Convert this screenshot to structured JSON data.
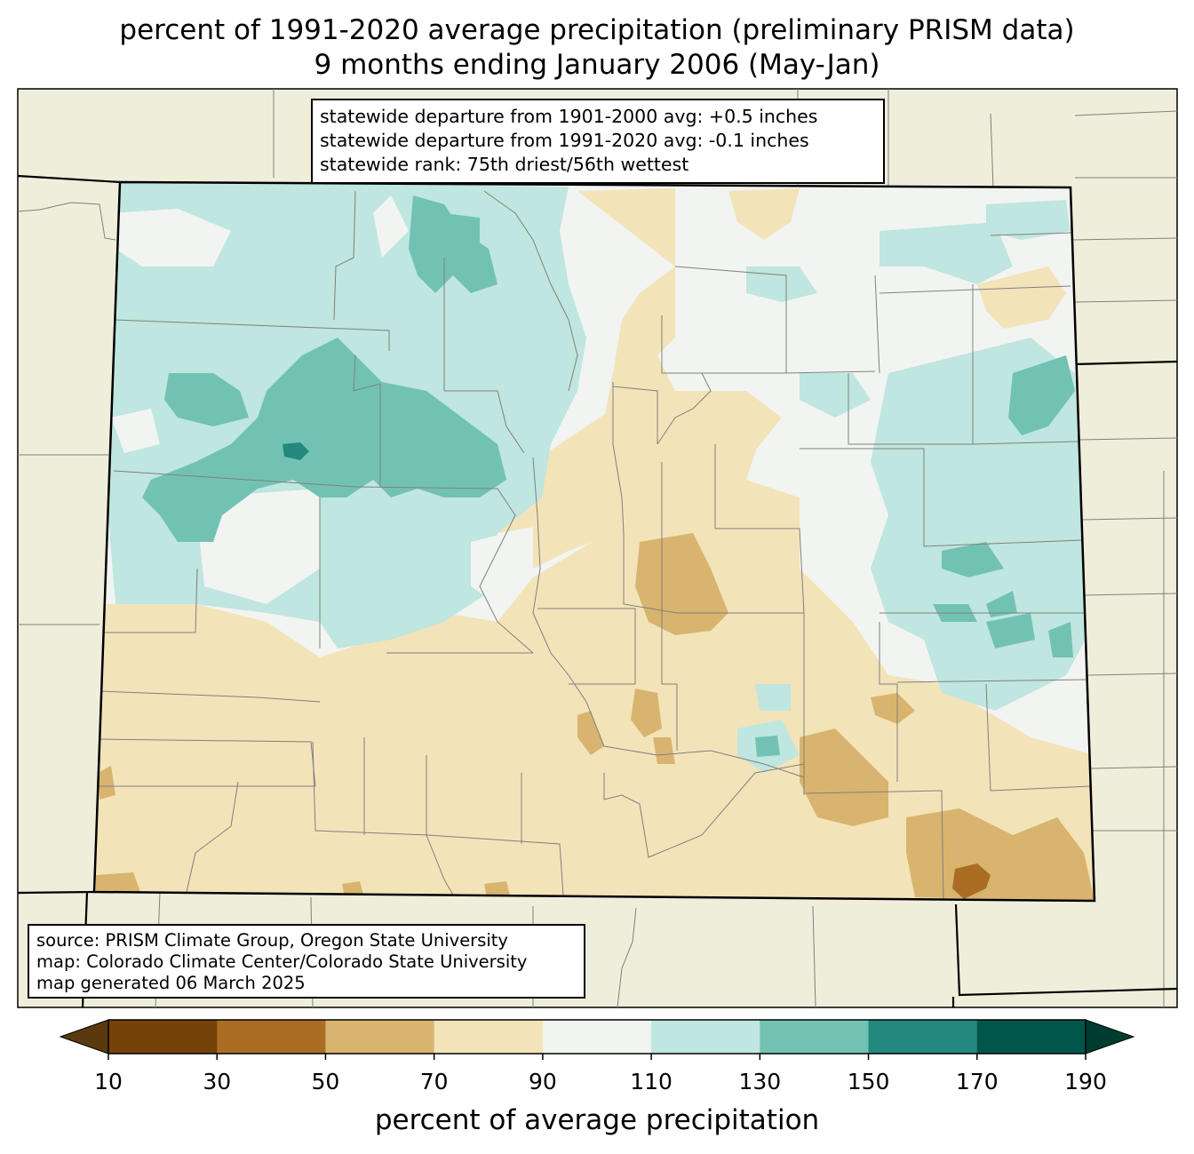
{
  "title": {
    "line1": "percent of 1991-2020 average precipitation (preliminary PRISM data)",
    "line2": "9 months ending January 2006 (May-Jan)"
  },
  "stats": {
    "line1": "statewide departure from 1901-2000 avg: +0.5 inches",
    "line2": "statewide departure from 1991-2020 avg: -0.1 inches",
    "line3": "statewide rank: 75th driest/56th wettest"
  },
  "source": {
    "line1": "source: PRISM Climate Group, Oregon State University",
    "line2": "map: Colorado Climate Center/Colorado State University",
    "line3": "map generated 06 March 2025"
  },
  "colorbar": {
    "label": "percent of average precipitation",
    "ticks": [
      "10",
      "30",
      "50",
      "70",
      "90",
      "110",
      "130",
      "150",
      "170",
      "190"
    ],
    "under_color": "#5a3a0c",
    "over_color": "#003c30",
    "bins": [
      {
        "range": "10-30",
        "color": "#744208"
      },
      {
        "range": "30-50",
        "color": "#ab6d24"
      },
      {
        "range": "50-70",
        "color": "#d8b46e"
      },
      {
        "range": "70-90",
        "color": "#f3e3b9"
      },
      {
        "range": "90-110",
        "color": "#f2f4f2"
      },
      {
        "range": "110-130",
        "color": "#bfe6e0"
      },
      {
        "range": "130-150",
        "color": "#72c2b4"
      },
      {
        "range": "150-170",
        "color": "#23887e"
      },
      {
        "range": "170-190",
        "color": "#01564c"
      }
    ]
  },
  "map": {
    "state": "Colorado",
    "neighbor_fill": "#efeedb",
    "county_line_color": "#808080"
  }
}
